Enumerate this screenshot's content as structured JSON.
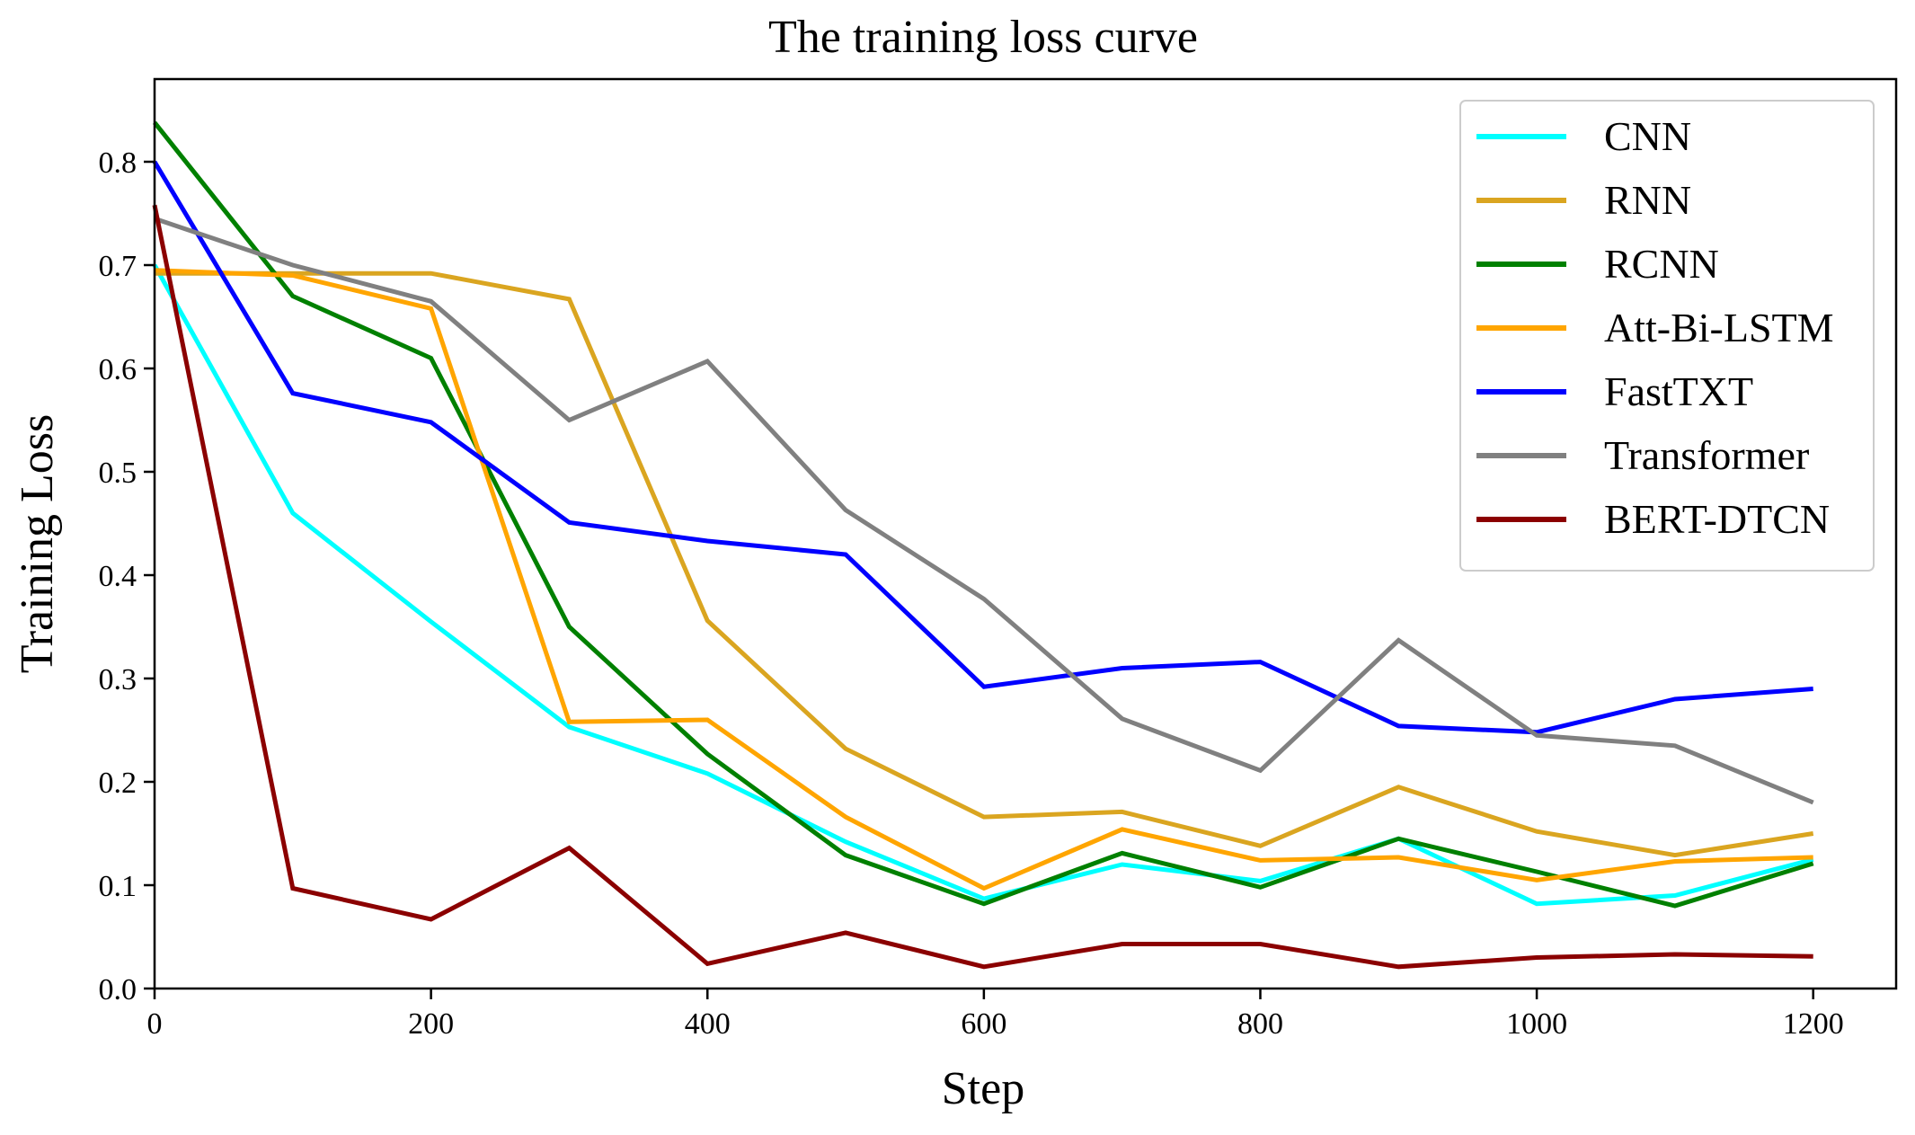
{
  "chart_data": {
    "type": "line",
    "title": "The training loss curve",
    "xlabel": "Step",
    "ylabel": "Training Loss",
    "xlim": [
      0,
      1260
    ],
    "ylim": [
      0.0,
      0.88
    ],
    "x_ticks": [
      0,
      200,
      400,
      600,
      800,
      1000,
      1200
    ],
    "x_tick_labels": [
      "0",
      "200",
      "400",
      "600",
      "800",
      "1000",
      "1200"
    ],
    "y_ticks": [
      0.0,
      0.1,
      0.2,
      0.3,
      0.4,
      0.5,
      0.6,
      0.7,
      0.8
    ],
    "y_tick_labels": [
      "0.0",
      "0.1",
      "0.2",
      "0.3",
      "0.4",
      "0.5",
      "0.6",
      "0.7",
      "0.8"
    ],
    "grid": false,
    "legend_position": "top-right",
    "x": [
      0,
      100,
      200,
      300,
      400,
      500,
      600,
      700,
      800,
      900,
      1000,
      1100,
      1200
    ],
    "series": [
      {
        "name": "CNN",
        "color": "#00ffff",
        "values": [
          0.7,
          0.46,
          0.355,
          0.253,
          0.208,
          0.142,
          0.087,
          0.12,
          0.104,
          0.145,
          0.082,
          0.09,
          0.125
        ]
      },
      {
        "name": "RNN",
        "color": "#daa520",
        "values": [
          0.692,
          0.692,
          0.692,
          0.667,
          0.356,
          0.232,
          0.166,
          0.171,
          0.138,
          0.195,
          0.152,
          0.129,
          0.15
        ]
      },
      {
        "name": "RCNN",
        "color": "#008000",
        "values": [
          0.838,
          0.67,
          0.61,
          0.35,
          0.227,
          0.129,
          0.082,
          0.131,
          0.098,
          0.145,
          0.113,
          0.08,
          0.121
        ]
      },
      {
        "name": "Att-Bi-LSTM",
        "color": "#ffa500",
        "values": [
          0.695,
          0.69,
          0.658,
          0.258,
          0.26,
          0.166,
          0.097,
          0.154,
          0.124,
          0.127,
          0.105,
          0.123,
          0.127
        ]
      },
      {
        "name": "FastTXT",
        "color": "#0000ff",
        "values": [
          0.8,
          0.576,
          0.548,
          0.451,
          0.433,
          0.42,
          0.292,
          0.31,
          0.316,
          0.254,
          0.248,
          0.28,
          0.29
        ]
      },
      {
        "name": "Transformer",
        "color": "#808080",
        "values": [
          0.745,
          0.7,
          0.665,
          0.55,
          0.607,
          0.463,
          0.377,
          0.261,
          0.211,
          0.337,
          0.245,
          0.235,
          0.18
        ]
      },
      {
        "name": "BERT-DTCN",
        "color": "#8b0000",
        "values": [
          0.758,
          0.097,
          0.067,
          0.136,
          0.024,
          0.054,
          0.021,
          0.043,
          0.043,
          0.021,
          0.03,
          0.033,
          0.031
        ]
      }
    ]
  }
}
